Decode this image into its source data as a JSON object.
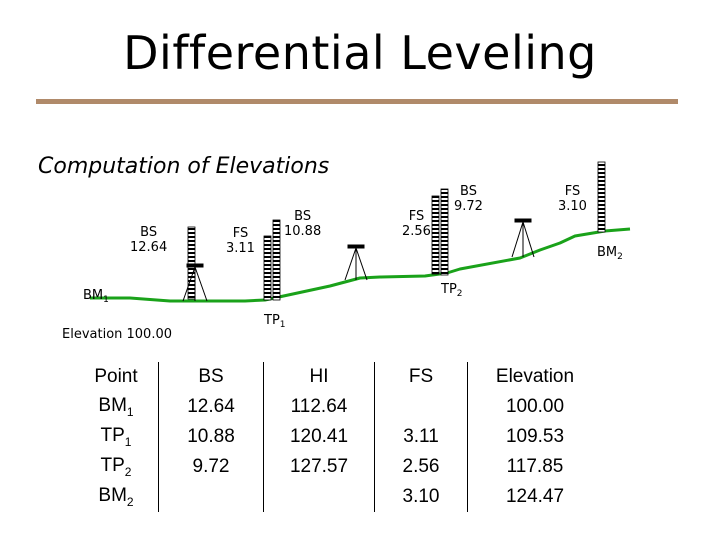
{
  "title": "Differential Leveling",
  "subtitle": "Computation of Elevations",
  "elevation_label": "Elevation 100.00",
  "diagram": {
    "readings": [
      {
        "type": "BS",
        "value": "12.64"
      },
      {
        "type": "FS",
        "value": "3.11"
      },
      {
        "type": "BS",
        "value": "10.88"
      },
      {
        "type": "FS",
        "value": "2.56"
      },
      {
        "type": "BS",
        "value": "9.72"
      },
      {
        "type": "FS",
        "value": "3.10"
      }
    ],
    "points": [
      {
        "name": "BM",
        "sub": "1"
      },
      {
        "name": "TP",
        "sub": "1"
      },
      {
        "name": "TP",
        "sub": "2"
      },
      {
        "name": "BM",
        "sub": "2"
      }
    ]
  },
  "table": {
    "headers": [
      "Point",
      "BS",
      "HI",
      "FS",
      "Elevation"
    ],
    "rows": [
      {
        "point": "BM",
        "sub": "1",
        "bs": "12.64",
        "hi": "112.64",
        "fs": "",
        "elevation": "100.00"
      },
      {
        "point": "TP",
        "sub": "1",
        "bs": "10.88",
        "hi": "120.41",
        "fs": "3.11",
        "elevation": "109.53"
      },
      {
        "point": "TP",
        "sub": "2",
        "bs": "9.72",
        "hi": "127.57",
        "fs": "2.56",
        "elevation": "117.85"
      },
      {
        "point": "BM",
        "sub": "2",
        "bs": "",
        "hi": "",
        "fs": "3.10",
        "elevation": "124.47"
      }
    ]
  }
}
